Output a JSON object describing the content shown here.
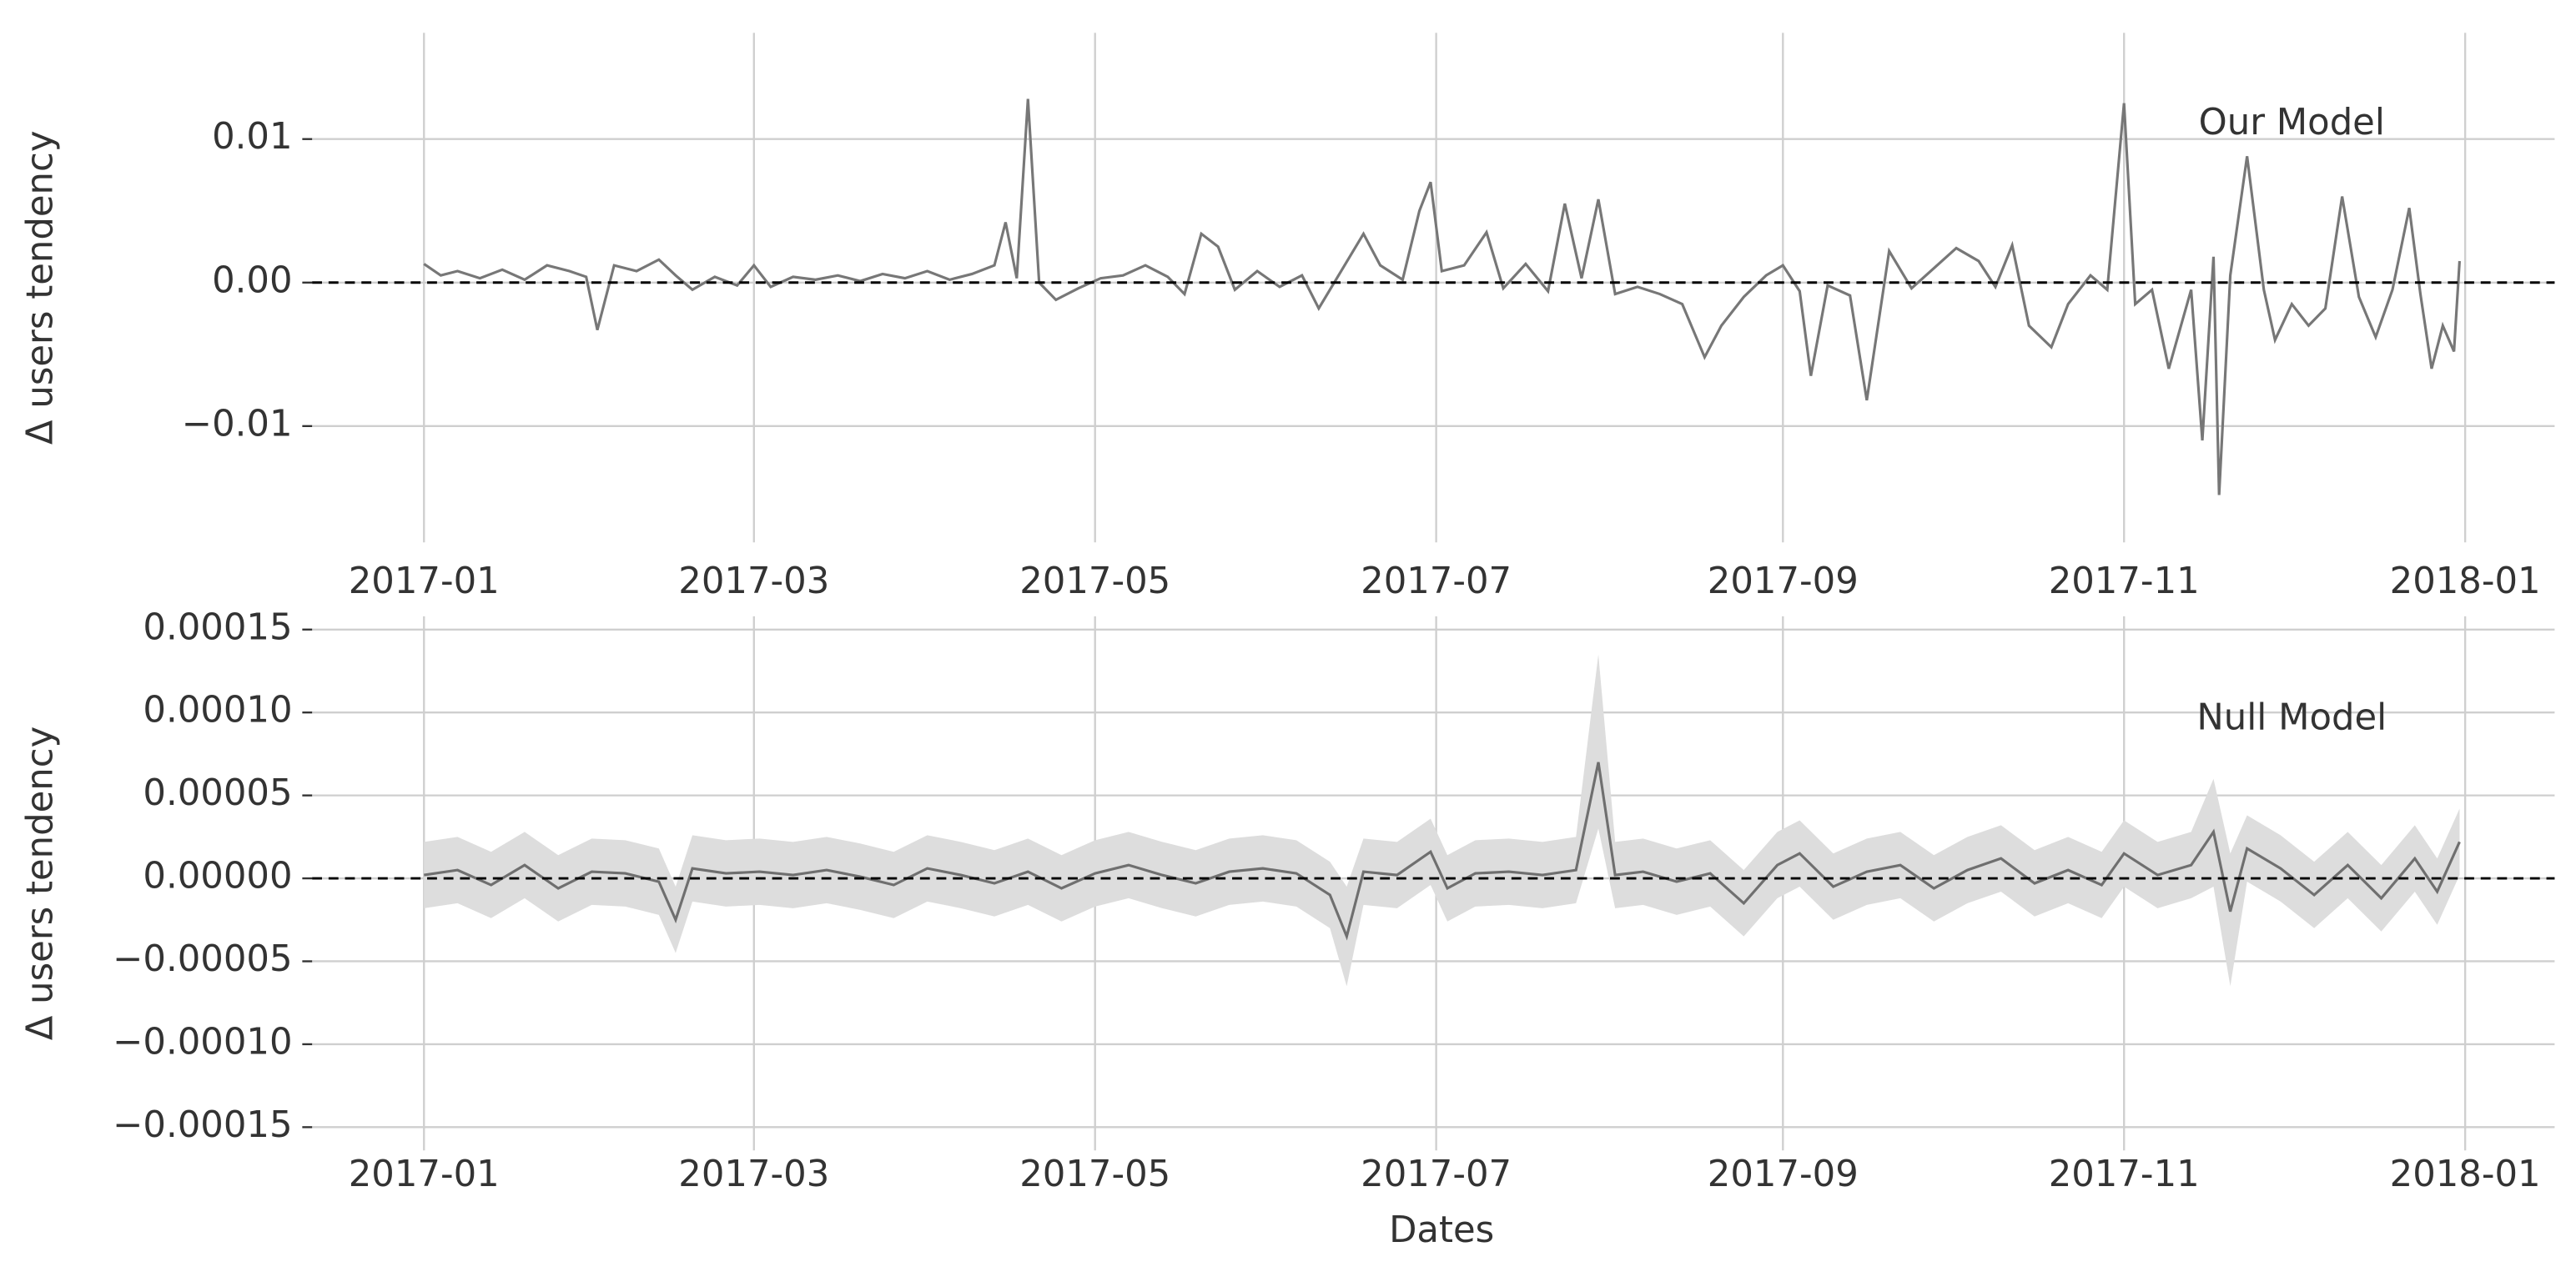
{
  "chart_data": [
    {
      "type": "line",
      "ylabel": "Δ users tendency",
      "annotation": "Our Model",
      "x": [
        0,
        3,
        6,
        10,
        14,
        18,
        22,
        26,
        29,
        31,
        34,
        38,
        42,
        45,
        48,
        52,
        56,
        59,
        62,
        66,
        70,
        74,
        78,
        82,
        86,
        90,
        94,
        98,
        102,
        104,
        106,
        108,
        110,
        113,
        117,
        121,
        125,
        129,
        133,
        136,
        139,
        142,
        145,
        149,
        153,
        157,
        160,
        164,
        168,
        171,
        175,
        178,
        180,
        182,
        186,
        190,
        193,
        197,
        201,
        204,
        207,
        210,
        213,
        217,
        221,
        225,
        229,
        232,
        236,
        240,
        243,
        246,
        248,
        251,
        255,
        258,
        262,
        266,
        270,
        274,
        278,
        281,
        284,
        287,
        291,
        294,
        298,
        301,
        304,
        306,
        309,
        312,
        316,
        318,
        320,
        321,
        323,
        326,
        329,
        331,
        334,
        337,
        340,
        343,
        346,
        349,
        352,
        355,
        357,
        359,
        361,
        363,
        364
      ],
      "values": [
        0.0013,
        0.0005,
        0.0008,
        0.0003,
        0.0009,
        0.0002,
        0.0012,
        0.0008,
        0.0004,
        -0.0033,
        0.0012,
        0.0008,
        0.0016,
        0.0005,
        -0.0005,
        0.0004,
        -0.0002,
        0.0012,
        -0.0003,
        0.0004,
        0.0002,
        0.0005,
        0.0001,
        0.0006,
        0.0003,
        0.0008,
        0.0002,
        0.0006,
        0.0012,
        0.0042,
        0.0003,
        0.0128,
        0.0,
        -0.0012,
        -0.0004,
        0.0003,
        0.0005,
        0.0012,
        0.0004,
        -0.0008,
        0.0034,
        0.0025,
        -0.0005,
        0.0008,
        -0.0003,
        0.0005,
        -0.0018,
        0.0008,
        0.0034,
        0.0012,
        0.0002,
        0.005,
        0.007,
        0.0008,
        0.0012,
        0.0035,
        -0.0004,
        0.0013,
        -0.0006,
        0.0055,
        0.0003,
        0.0058,
        -0.0008,
        -0.0003,
        -0.0008,
        -0.0015,
        -0.0052,
        -0.003,
        -0.001,
        0.0005,
        0.0012,
        -0.0006,
        -0.0065,
        -0.0002,
        -0.0009,
        -0.0082,
        0.0022,
        -0.0004,
        0.001,
        0.0024,
        0.0015,
        -0.0003,
        0.0026,
        -0.003,
        -0.0045,
        -0.0015,
        0.0005,
        -0.0005,
        0.0125,
        -0.0015,
        -0.0005,
        -0.006,
        -0.0005,
        -0.011,
        0.0018,
        -0.0148,
        0.0005,
        0.0088,
        -0.0005,
        -0.004,
        -0.0015,
        -0.003,
        -0.0018,
        0.006,
        -0.001,
        -0.0038,
        -0.0005,
        0.0052,
        -0.0008,
        -0.006,
        -0.003,
        -0.0048,
        0.0015
      ],
      "color": "#777777",
      "hline": 0,
      "xlim": [
        -20,
        381
      ],
      "xticks": [
        {
          "value": 0,
          "label": "2017-01"
        },
        {
          "value": 59,
          "label": "2017-03"
        },
        {
          "value": 120,
          "label": "2017-05"
        },
        {
          "value": 181,
          "label": "2017-07"
        },
        {
          "value": 243,
          "label": "2017-09"
        },
        {
          "value": 304,
          "label": "2017-11"
        },
        {
          "value": 365,
          "label": "2018-01"
        }
      ],
      "ylim": [
        -0.0181,
        0.0174
      ],
      "yticks": [
        {
          "value": -0.01,
          "label": "−0.01"
        },
        {
          "value": 0,
          "label": "0.00"
        },
        {
          "value": 0.01,
          "label": "0.01"
        }
      ],
      "grid": true
    },
    {
      "type": "line",
      "ylabel": "Δ users tendency",
      "annotation": "Null Model",
      "xlabel": "Dates",
      "x": [
        0,
        6,
        12,
        18,
        24,
        30,
        36,
        42,
        45,
        48,
        54,
        60,
        66,
        72,
        78,
        84,
        90,
        96,
        102,
        108,
        114,
        120,
        126,
        132,
        138,
        144,
        150,
        156,
        162,
        165,
        168,
        174,
        180,
        183,
        188,
        194,
        200,
        206,
        210,
        213,
        218,
        224,
        230,
        236,
        242,
        246,
        252,
        258,
        264,
        270,
        276,
        282,
        288,
        294,
        300,
        304,
        310,
        316,
        320,
        323,
        326,
        332,
        338,
        344,
        350,
        356,
        360,
        364
      ],
      "values": [
        2e-06,
        5e-06,
        -4e-06,
        8e-06,
        -6e-06,
        4e-06,
        3e-06,
        -2e-06,
        -2.5e-05,
        6e-06,
        3e-06,
        4e-06,
        2e-06,
        5e-06,
        1e-06,
        -4e-06,
        6e-06,
        2e-06,
        -3e-06,
        4e-06,
        -6e-06,
        3e-06,
        8e-06,
        2e-06,
        -3e-06,
        4e-06,
        6e-06,
        3e-06,
        -1e-05,
        -3.5e-05,
        4e-06,
        2e-06,
        1.6e-05,
        -6e-06,
        3e-06,
        4e-06,
        2e-06,
        5e-06,
        7e-05,
        2e-06,
        4e-06,
        -2e-06,
        3e-06,
        -1.5e-05,
        8e-06,
        1.5e-05,
        -5e-06,
        4e-06,
        8e-06,
        -6e-06,
        5e-06,
        1.2e-05,
        -3e-06,
        5e-06,
        -4e-06,
        1.5e-05,
        2e-06,
        8e-06,
        2.8e-05,
        -2e-05,
        1.8e-05,
        6e-06,
        -1e-05,
        8e-06,
        -1.2e-05,
        1.2e-05,
        -8e-06,
        2.2e-05
      ],
      "band": {
        "lower": [
          -1.8e-05,
          -1.5e-05,
          -2.4e-05,
          -1.2e-05,
          -2.6e-05,
          -1.6e-05,
          -1.7e-05,
          -2.2e-05,
          -4.5e-05,
          -1.4e-05,
          -1.7e-05,
          -1.6e-05,
          -1.8e-05,
          -1.5e-05,
          -1.9e-05,
          -2.4e-05,
          -1.4e-05,
          -1.8e-05,
          -2.3e-05,
          -1.6e-05,
          -2.6e-05,
          -1.7e-05,
          -1.2e-05,
          -1.8e-05,
          -2.3e-05,
          -1.6e-05,
          -1.4e-05,
          -1.7e-05,
          -3e-05,
          -6.5e-05,
          -1.6e-05,
          -1.8e-05,
          -4e-06,
          -2.6e-05,
          -1.7e-05,
          -1.6e-05,
          -1.8e-05,
          -1.5e-05,
          3e-05,
          -1.8e-05,
          -1.6e-05,
          -2.2e-05,
          -1.7e-05,
          -3.5e-05,
          -1.2e-05,
          -5e-06,
          -2.5e-05,
          -1.6e-05,
          -1.2e-05,
          -2.6e-05,
          -1.5e-05,
          -8e-06,
          -2.3e-05,
          -1.5e-05,
          -2.4e-05,
          -5e-06,
          -1.8e-05,
          -1.2e-05,
          -5e-06,
          -6.5e-05,
          -2e-06,
          -1.4e-05,
          -3e-05,
          -1.2e-05,
          -3.2e-05,
          -8e-06,
          -2.8e-05,
          2e-06
        ],
        "upper": [
          2.2e-05,
          2.5e-05,
          1.6e-05,
          2.8e-05,
          1.4e-05,
          2.4e-05,
          2.3e-05,
          1.8e-05,
          -5e-06,
          2.6e-05,
          2.3e-05,
          2.4e-05,
          2.2e-05,
          2.5e-05,
          2.1e-05,
          1.6e-05,
          2.6e-05,
          2.2e-05,
          1.7e-05,
          2.4e-05,
          1.4e-05,
          2.3e-05,
          2.8e-05,
          2.2e-05,
          1.7e-05,
          2.4e-05,
          2.6e-05,
          2.3e-05,
          1e-05,
          -5e-06,
          2.4e-05,
          2.2e-05,
          3.6e-05,
          1.4e-05,
          2.3e-05,
          2.4e-05,
          2.2e-05,
          2.5e-05,
          0.000135,
          2.2e-05,
          2.4e-05,
          1.8e-05,
          2.3e-05,
          5e-06,
          2.8e-05,
          3.5e-05,
          1.5e-05,
          2.4e-05,
          2.8e-05,
          1.4e-05,
          2.5e-05,
          3.2e-05,
          1.7e-05,
          2.5e-05,
          1.6e-05,
          3.5e-05,
          2.2e-05,
          2.8e-05,
          6e-05,
          1.5e-05,
          3.8e-05,
          2.6e-05,
          1e-05,
          2.8e-05,
          8e-06,
          3.2e-05,
          1.2e-05,
          4.2e-05
        ],
        "color": "#dddddd"
      },
      "color": "#6f6f6f",
      "hline": 0,
      "xlim": [
        -20,
        381
      ],
      "xticks": [
        {
          "value": 0,
          "label": "2017-01"
        },
        {
          "value": 59,
          "label": "2017-03"
        },
        {
          "value": 120,
          "label": "2017-05"
        },
        {
          "value": 181,
          "label": "2017-07"
        },
        {
          "value": 243,
          "label": "2017-09"
        },
        {
          "value": 304,
          "label": "2017-11"
        },
        {
          "value": 365,
          "label": "2018-01"
        }
      ],
      "ylim": [
        -0.000164,
        0.000158
      ],
      "yticks": [
        {
          "value": -0.00015,
          "label": "−0.00015"
        },
        {
          "value": -0.0001,
          "label": "−0.00010"
        },
        {
          "value": -5e-05,
          "label": "−0.00005"
        },
        {
          "value": 0,
          "label": "0.00000"
        },
        {
          "value": 5e-05,
          "label": "0.00005"
        },
        {
          "value": 0.0001,
          "label": "0.00010"
        },
        {
          "value": 0.00015,
          "label": "0.00015"
        }
      ],
      "grid": true
    }
  ]
}
